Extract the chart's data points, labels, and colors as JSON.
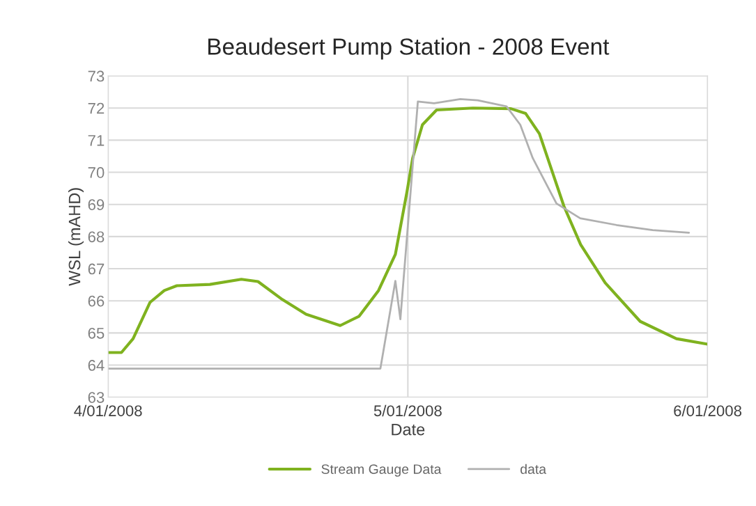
{
  "chart_data": {
    "type": "line",
    "title": "Beaudesert Pump Station - 2008 Event",
    "xlabel": "Date",
    "ylabel": "WSL (mAHD)",
    "xlim": [
      "2008-01-04",
      "2008-01-06"
    ],
    "xticks": [
      {
        "value": "2008-01-04",
        "label": "4/01/2008"
      },
      {
        "value": "2008-01-05",
        "label": "5/01/2008"
      },
      {
        "value": "2008-01-06",
        "label": "6/01/2008"
      }
    ],
    "ylim": [
      63,
      73
    ],
    "yticks": [
      63,
      64,
      65,
      66,
      67,
      68,
      69,
      70,
      71,
      72,
      73
    ],
    "grid": true,
    "legend": "bottom",
    "series": [
      {
        "name": "Stream Gauge Data",
        "color": "#7fb21f",
        "x": [
          "2008-01-04T00:00",
          "2008-01-04T01:04",
          "2008-01-04T02:00",
          "2008-01-04T03:21",
          "2008-01-04T04:30",
          "2008-01-04T05:30",
          "2008-01-04T08:09",
          "2008-01-04T10:40",
          "2008-01-04T12:00",
          "2008-01-04T13:57",
          "2008-01-04T15:51",
          "2008-01-04T18:35",
          "2008-01-04T20:06",
          "2008-01-04T21:39",
          "2008-01-04T23:00",
          "2008-01-04T23:56",
          "2008-01-05T00:23",
          "2008-01-05T01:10",
          "2008-01-05T02:18",
          "2008-01-05T05:12",
          "2008-01-05T08:15",
          "2008-01-05T09:26",
          "2008-01-05T10:32",
          "2008-01-05T12:30",
          "2008-01-05T13:50",
          "2008-01-05T15:48",
          "2008-01-05T18:36",
          "2008-01-05T21:30",
          "2008-01-06T00:00"
        ],
        "values": [
          64.39,
          64.39,
          64.82,
          65.95,
          66.32,
          66.47,
          66.51,
          66.67,
          66.6,
          66.04,
          65.58,
          65.23,
          65.52,
          66.32,
          67.45,
          69.4,
          70.44,
          71.48,
          71.94,
          72.0,
          71.98,
          71.83,
          71.2,
          68.94,
          67.75,
          66.56,
          65.36,
          64.82,
          64.65
        ]
      },
      {
        "name": "data",
        "color": "#b0b0b0",
        "x": [
          "2008-01-04T00:00",
          "2008-01-04T21:48",
          "2008-01-04T23:00",
          "2008-01-04T23:24",
          "2008-01-05T00:48",
          "2008-01-05T02:06",
          "2008-01-05T04:12",
          "2008-01-05T05:36",
          "2008-01-05T07:54",
          "2008-01-05T09:00",
          "2008-01-05T10:00",
          "2008-01-05T11:54",
          "2008-01-05T13:48",
          "2008-01-05T16:42",
          "2008-01-05T19:36",
          "2008-01-05T22:30"
        ],
        "values": [
          63.89,
          63.89,
          66.62,
          65.43,
          72.2,
          72.15,
          72.28,
          72.24,
          72.05,
          71.48,
          70.44,
          69.03,
          68.57,
          68.36,
          68.2,
          68.12
        ]
      }
    ]
  }
}
